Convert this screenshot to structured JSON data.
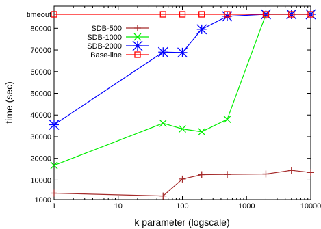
{
  "chart_data": {
    "type": "line",
    "xlabel": "k parameter (logscale)",
    "ylabel": "time (sec)",
    "xscale": "log",
    "xlim": [
      1,
      10000
    ],
    "ylim": [
      1000,
      86400
    ],
    "x_ticks": [
      {
        "value": 1,
        "label": "1"
      },
      {
        "value": 10,
        "label": "10"
      },
      {
        "value": 100,
        "label": "100"
      },
      {
        "value": 1000,
        "label": "1000"
      },
      {
        "value": 10000,
        "label": "10000"
      }
    ],
    "y_ticks": [
      {
        "value": 1000,
        "label": "1000"
      },
      {
        "value": 10000,
        "label": "10000"
      },
      {
        "value": 20000,
        "label": "20000"
      },
      {
        "value": 30000,
        "label": "30000"
      },
      {
        "value": 40000,
        "label": "40000"
      },
      {
        "value": 50000,
        "label": "50000"
      },
      {
        "value": 60000,
        "label": "60000"
      },
      {
        "value": 70000,
        "label": "70000"
      },
      {
        "value": 80000,
        "label": "80000"
      },
      {
        "value": 86400,
        "label": "timeout"
      }
    ],
    "legend_position": "upper-left",
    "grid": false,
    "series": [
      {
        "name": "SDB-500",
        "color": "#a52a2a",
        "marker": "plus",
        "points": [
          [
            1,
            4000
          ],
          [
            50,
            2700
          ],
          [
            100,
            10500
          ],
          [
            200,
            12500
          ],
          [
            500,
            12600
          ],
          [
            2000,
            12800
          ],
          [
            5000,
            14500
          ],
          [
            10000,
            13500
          ]
        ]
      },
      {
        "name": "SDB-1000",
        "color": "#00ee00",
        "marker": "cross",
        "points": [
          [
            1,
            16800
          ],
          [
            50,
            36200
          ],
          [
            100,
            33600
          ],
          [
            200,
            32300
          ],
          [
            500,
            38000
          ],
          [
            2000,
            86400
          ],
          [
            5000,
            86400
          ],
          [
            10000,
            86400
          ]
        ]
      },
      {
        "name": "SDB-2000",
        "color": "#0000ff",
        "marker": "star",
        "points": [
          [
            1,
            35500
          ],
          [
            50,
            69000
          ],
          [
            100,
            68800
          ],
          [
            200,
            79500
          ],
          [
            500,
            85500
          ],
          [
            2000,
            86400
          ],
          [
            5000,
            86400
          ],
          [
            10000,
            86400
          ]
        ]
      },
      {
        "name": "Base-line",
        "color": "#ff0000",
        "marker": "square",
        "points": [
          [
            1,
            86400
          ],
          [
            50,
            86400
          ],
          [
            100,
            86400
          ],
          [
            200,
            86400
          ],
          [
            500,
            86400
          ],
          [
            2000,
            86400
          ],
          [
            5000,
            86400
          ],
          [
            10000,
            86400
          ]
        ]
      }
    ]
  }
}
